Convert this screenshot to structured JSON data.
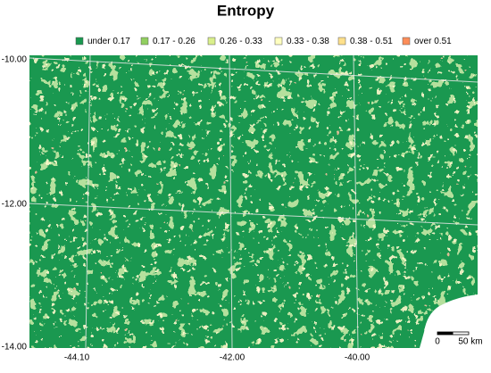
{
  "title": "Entropy",
  "legend": [
    {
      "label": "under 0.17",
      "color": "#1a9850"
    },
    {
      "label": "0.17 - 0.26",
      "color": "#91cf60"
    },
    {
      "label": "0.26 - 0.33",
      "color": "#d9ef8b"
    },
    {
      "label": "0.33 - 0.38",
      "color": "#ffffbf"
    },
    {
      "label": "0.38 - 0.51",
      "color": "#fee08b"
    },
    {
      "label": "over 0.51",
      "color": "#fc8d59"
    }
  ],
  "y_labels": [
    "-10.00",
    "-12.00",
    "-14.00"
  ],
  "x_labels": [
    "-44.10",
    "-42.00",
    "-40.00"
  ],
  "scale_bar": {
    "start": "0",
    "end": "50 km"
  }
}
